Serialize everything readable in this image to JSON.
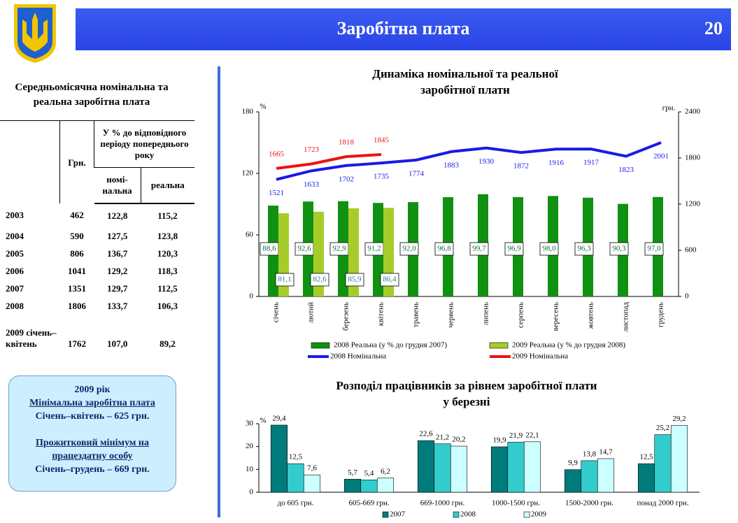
{
  "header": {
    "title": "Заробітна плата",
    "page": "20"
  },
  "table": {
    "title": [
      "Середньомісячна номінальна та",
      "реальна  заробітна плата"
    ],
    "header": {
      "uah": "Грн.",
      "percent": "У % до відповідного періоду попереднього року",
      "nominal": "номі-нальна",
      "real": "реальна"
    },
    "rows": [
      [
        "2003",
        "462",
        "122,8",
        "115,2"
      ],
      [
        "2004",
        "590",
        "127,5",
        "123,8"
      ],
      [
        "2005",
        "806",
        "136,7",
        "120,3"
      ],
      [
        "2006",
        "1041",
        "129,2",
        "118,3"
      ],
      [
        "2007",
        "1351",
        "129,7",
        "112,5"
      ],
      [
        "2008",
        "1806",
        "133,7",
        "106,3"
      ],
      [
        "2009 січень–квітень",
        "1762",
        "107,0",
        "89,2"
      ]
    ]
  },
  "info": {
    "year": "2009 рік",
    "min_wage": "Мінімальна заробітна плата",
    "min_wage_value": "Січень–квітень – 625 грн.",
    "subsistence": [
      "Прожитковий мінімум на",
      "працездатну особу"
    ],
    "subsistence_value": "Січень–грудень – 669 грн."
  },
  "chart_data": [
    {
      "type": "bar_line",
      "title": [
        "Динаміка номінальної та реальної",
        "заробітної плати"
      ],
      "y_label": "%",
      "y2_label": "грн.",
      "categories": [
        "січень",
        "лютий",
        "березень",
        "квітень",
        "травень",
        "червень",
        "липень",
        "серпень",
        "вересень",
        "жовтень",
        "листопад",
        "грудень"
      ],
      "ylim": [
        0,
        180
      ],
      "yticks": [
        0,
        60,
        120,
        180
      ],
      "y2lim": [
        0,
        2400
      ],
      "y2ticks": [
        0,
        600,
        1200,
        1800,
        2400
      ],
      "grid": false,
      "series": [
        {
          "name": "2008 Реальна (у % до грудня 2007)",
          "type": "bar",
          "color": "#119111",
          "values": [
            88.6,
            92.6,
            92.9,
            91.2,
            92.0,
            96.8,
            99.7,
            96.9,
            98.0,
            96.3,
            90.3,
            97.0
          ],
          "value_labels": [
            "88,6",
            "92,6",
            "92,9",
            "91,2",
            "92,0",
            "96,8",
            "99,7",
            "96,9",
            "98,0",
            "96,3",
            "90,3",
            "97,0"
          ]
        },
        {
          "name": "2009 Реальна (у % до грудня 2008)",
          "type": "bar",
          "color": "#a6cc2a",
          "values": [
            81.1,
            82.6,
            85.9,
            86.4,
            null,
            null,
            null,
            null,
            null,
            null,
            null,
            null
          ],
          "value_labels": [
            "81,1",
            "82,6",
            "85,9",
            "86,4",
            null,
            null,
            null,
            null,
            null,
            null,
            null,
            null
          ]
        },
        {
          "name": "2008 Номінальна",
          "type": "line",
          "axis": "y2",
          "color": "#1a1ae6",
          "values": [
            1521,
            1633,
            1702,
            1735,
            1774,
            1883,
            1930,
            1872,
            1916,
            1917,
            1823,
            2001
          ]
        },
        {
          "name": "2009 Номінальна",
          "type": "line",
          "axis": "y2",
          "color": "#ee1111",
          "values": [
            1665,
            1723,
            1818,
            1845,
            null,
            null,
            null,
            null,
            null,
            null,
            null,
            null
          ]
        }
      ]
    },
    {
      "type": "bar",
      "title": [
        "Розподіл працівників за рівнем заробітної плати",
        "у березні"
      ],
      "y_label": "%",
      "categories": [
        "до 605 грн.",
        "605-669 грн.",
        "669-1000 грн.",
        "1000-1500 грн.",
        "1500-2000 грн.",
        "понад 2000 грн."
      ],
      "ylim": [
        0,
        30
      ],
      "yticks": [
        0,
        10,
        20,
        30
      ],
      "grid": false,
      "series": [
        {
          "name": "2007",
          "color": "#007b7b",
          "values": [
            29.4,
            5.7,
            22.6,
            19.9,
            9.9,
            12.5
          ],
          "value_labels": [
            "29,4",
            "5,7",
            "22,6",
            "19,9",
            "9,9",
            "12,5"
          ]
        },
        {
          "name": "2008",
          "color": "#33cccc",
          "values": [
            12.5,
            5.4,
            21.2,
            21.9,
            13.8,
            25.2
          ],
          "value_labels": [
            "12,5",
            "5,4",
            "21,2",
            "21,9",
            "13,8",
            "25,2"
          ]
        },
        {
          "name": "2009",
          "color": "#ccffff",
          "values": [
            7.6,
            6.2,
            20.2,
            22.1,
            14.7,
            29.2
          ],
          "value_labels": [
            "7,6",
            "6,2",
            "20,2",
            "22,1",
            "14,7",
            "29,2"
          ]
        }
      ]
    }
  ]
}
